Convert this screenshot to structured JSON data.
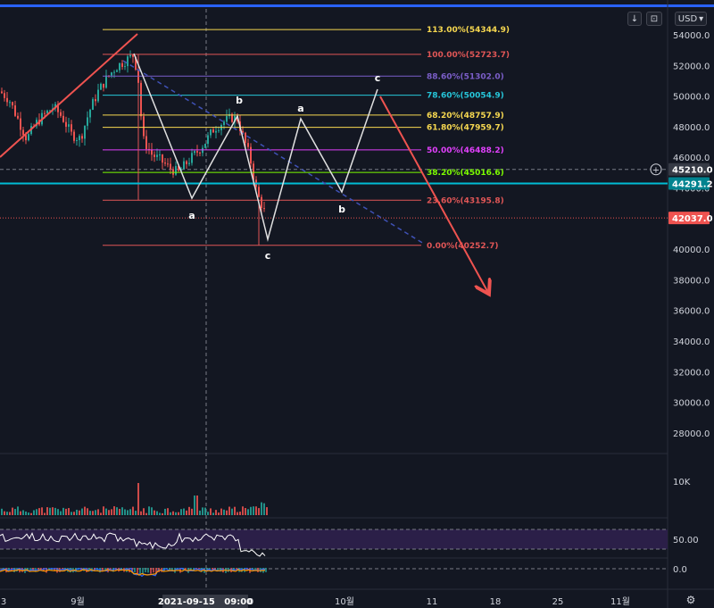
{
  "controls": {
    "currency": "USD",
    "currency_caret": "▾",
    "download_icon": "↓",
    "compare_icon": "⊡",
    "settings_icon": "⚙"
  },
  "price_axis": {
    "ticks": [
      "54000.0",
      "52000.0",
      "50000.0",
      "48000.0",
      "46000.0",
      "44000.0",
      "42000.0",
      "40000.0",
      "38000.0",
      "36000.0",
      "34000.0",
      "32000.0",
      "30000.0",
      "28000.0"
    ],
    "crosshair_label": "45210.0",
    "line_label": "44291.2",
    "last_price_label": "42037.0",
    "plus_icon": "+"
  },
  "volume_axis": {
    "tick": "10K"
  },
  "rsi_axis": {
    "tick": "50.00"
  },
  "macd_axis": {
    "tick": "0.0"
  },
  "time_axis": {
    "ticks": [
      "3",
      "9월",
      "0",
      "10월",
      "11",
      "18",
      "25",
      "11월"
    ],
    "crosshair_label": "2021-09-15   09:00"
  },
  "fib_levels": [
    {
      "label": "113.00%(54344.9)",
      "price": 54344.9,
      "color": "#f7d850"
    },
    {
      "label": "100.00%(52723.7)",
      "price": 52723.7,
      "color": "#e05656"
    },
    {
      "label": "88.60%(51302.0)",
      "price": 51302.0,
      "color": "#7b5ec9"
    },
    {
      "label": "78.60%(50054.9)",
      "price": 50054.9,
      "color": "#26c6da"
    },
    {
      "label": "68.20%(48757.9)",
      "price": 48757.9,
      "color": "#f7d850"
    },
    {
      "label": "61.80%(47959.7)",
      "price": 47959.7,
      "color": "#f7d850"
    },
    {
      "label": "50.00%(46488.2)",
      "price": 46488.2,
      "color": "#e040fb"
    },
    {
      "label": "38.20%(45016.6)",
      "price": 45016.6,
      "color": "#7cfc00"
    },
    {
      "label": "23.60%(43195.8)",
      "price": 43195.8,
      "color": "#e05656"
    },
    {
      "label": "0.00%(40252.7)",
      "price": 40252.7,
      "color": "#e05656"
    }
  ],
  "wave_labels": [
    "a",
    "b",
    "c",
    "a",
    "b",
    "c"
  ],
  "colors": {
    "background": "#131722",
    "up": "#26a69a",
    "down": "#ef5350",
    "cyan_line": "#00bcd4",
    "last_price": "#ef5350",
    "rsi_fill": "#2b1f48",
    "rsi_line": "#ffffff"
  }
}
